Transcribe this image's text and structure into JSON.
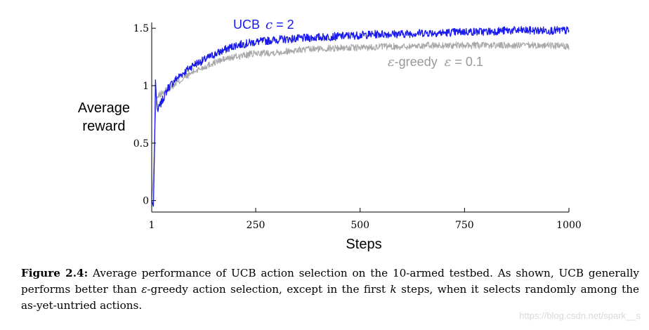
{
  "chart_data": {
    "type": "line",
    "xlabel": "Steps",
    "ylabel_line1": "Average",
    "ylabel_line2": "reward",
    "xlim": [
      1,
      1000
    ],
    "ylim": [
      -0.1,
      1.55
    ],
    "x_ticks": [
      {
        "value": 1,
        "label": "1"
      },
      {
        "value": 250,
        "label": "250"
      },
      {
        "value": 500,
        "label": "500"
      },
      {
        "value": 750,
        "label": "750"
      },
      {
        "value": 1000,
        "label": "1000"
      }
    ],
    "y_ticks": [
      {
        "value": 0,
        "label": "0"
      },
      {
        "value": 0.5,
        "label": "0.5"
      },
      {
        "value": 1,
        "label": "1"
      },
      {
        "value": 1.5,
        "label": "1.5"
      }
    ],
    "series": [
      {
        "name": "UCB c = 2",
        "legend_text": "UCB",
        "legend_sym": "c",
        "legend_value": "= 2",
        "color": "#1a1aee",
        "points": [
          [
            1,
            0.0
          ],
          [
            5,
            -0.05
          ],
          [
            8,
            0.5
          ],
          [
            10,
            1.05
          ],
          [
            12,
            0.9
          ],
          [
            15,
            0.78
          ],
          [
            20,
            0.82
          ],
          [
            30,
            0.9
          ],
          [
            40,
            0.98
          ],
          [
            60,
            1.06
          ],
          [
            80,
            1.12
          ],
          [
            100,
            1.18
          ],
          [
            125,
            1.22
          ],
          [
            150,
            1.27
          ],
          [
            175,
            1.31
          ],
          [
            200,
            1.35
          ],
          [
            250,
            1.38
          ],
          [
            300,
            1.4
          ],
          [
            350,
            1.41
          ],
          [
            400,
            1.42
          ],
          [
            450,
            1.43
          ],
          [
            500,
            1.44
          ],
          [
            550,
            1.45
          ],
          [
            600,
            1.45
          ],
          [
            650,
            1.46
          ],
          [
            700,
            1.46
          ],
          [
            750,
            1.47
          ],
          [
            800,
            1.47
          ],
          [
            850,
            1.48
          ],
          [
            900,
            1.48
          ],
          [
            950,
            1.48
          ],
          [
            1000,
            1.48
          ]
        ]
      },
      {
        "name": "ε-greedy ε = 0.1",
        "legend_text": "-greedy",
        "legend_sym": "ε",
        "legend_value": "= 0.1",
        "color": "#a8a8a8",
        "points": [
          [
            1,
            0.0
          ],
          [
            5,
            0.2
          ],
          [
            8,
            0.6
          ],
          [
            12,
            0.88
          ],
          [
            20,
            0.92
          ],
          [
            40,
            0.97
          ],
          [
            60,
            1.02
          ],
          [
            80,
            1.07
          ],
          [
            100,
            1.12
          ],
          [
            125,
            1.16
          ],
          [
            150,
            1.2
          ],
          [
            175,
            1.23
          ],
          [
            200,
            1.25
          ],
          [
            250,
            1.28
          ],
          [
            300,
            1.29
          ],
          [
            350,
            1.31
          ],
          [
            400,
            1.32
          ],
          [
            450,
            1.33
          ],
          [
            500,
            1.33
          ],
          [
            550,
            1.34
          ],
          [
            600,
            1.34
          ],
          [
            650,
            1.35
          ],
          [
            700,
            1.35
          ],
          [
            750,
            1.35
          ],
          [
            800,
            1.35
          ],
          [
            850,
            1.35
          ],
          [
            900,
            1.35
          ],
          [
            950,
            1.35
          ],
          [
            1000,
            1.34
          ]
        ]
      }
    ]
  },
  "caption": {
    "label": "Figure 2.4:",
    "text_1": " Average performance of UCB action selection on the 10-armed testbed. As shown, UCB generally performs better than ",
    "epsilon": "ε",
    "text_2": "-greedy action selection, except in the first ",
    "k": "k",
    "text_3": " steps, when it selects randomly among the as-yet-untried actions."
  },
  "watermark": "https://blog.csdn.net/spark__s"
}
